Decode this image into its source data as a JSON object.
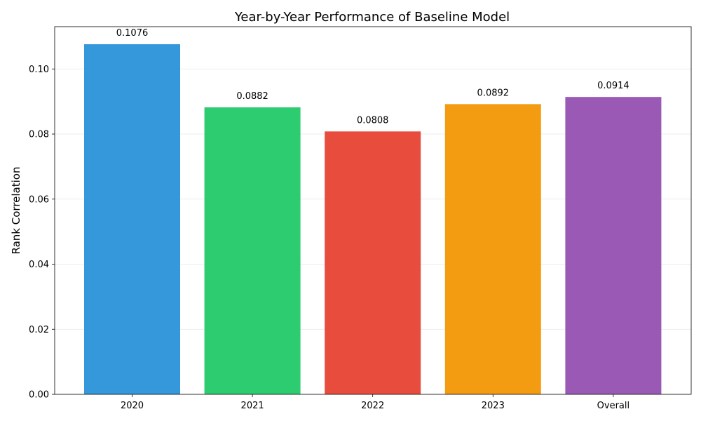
{
  "chart_data": {
    "type": "bar",
    "title": "Year-by-Year Performance of Baseline Model",
    "xlabel": "",
    "ylabel": "Rank Correlation",
    "categories": [
      "2020",
      "2021",
      "2022",
      "2023",
      "Overall"
    ],
    "values": [
      0.1076,
      0.0882,
      0.0808,
      0.0892,
      0.0914
    ],
    "value_labels": [
      "0.1076",
      "0.0882",
      "0.0808",
      "0.0892",
      "0.0914"
    ],
    "colors": [
      "#3498db",
      "#2ecc71",
      "#e74c3c",
      "#f39c12",
      "#9b59b6"
    ],
    "ylim": [
      0,
      0.113
    ],
    "yticks": [
      0,
      0.02,
      0.04,
      0.06,
      0.08,
      0.1
    ],
    "ytick_labels": [
      "0.00",
      "0.02",
      "0.04",
      "0.06",
      "0.08",
      "0.10"
    ],
    "grid": "y-axis only",
    "legend": "none"
  }
}
